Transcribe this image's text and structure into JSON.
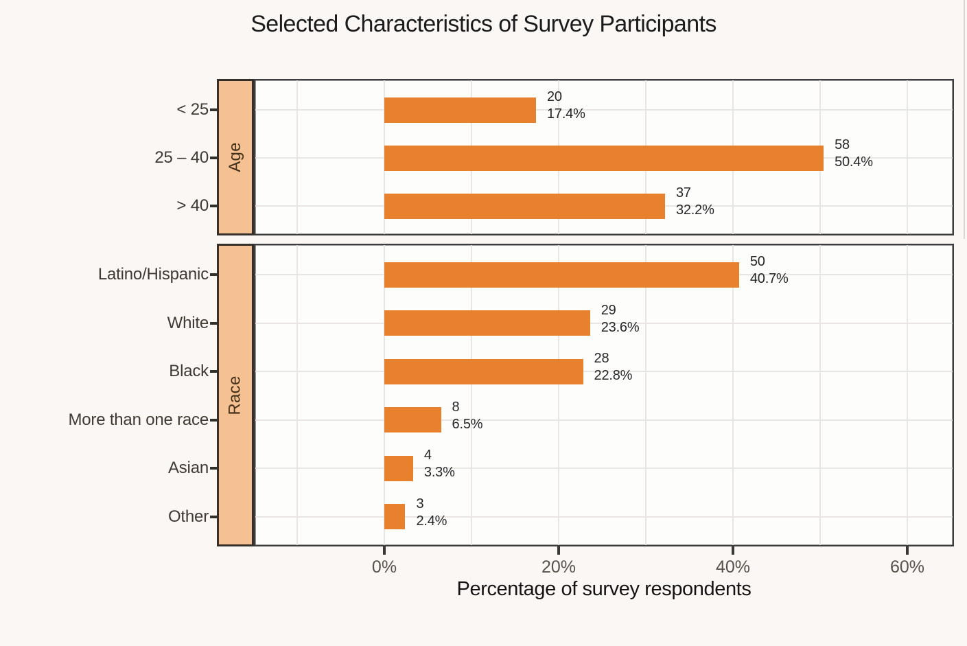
{
  "page": {
    "background": "#FAF7F4"
  },
  "chart_data": {
    "type": "bar",
    "orientation": "horizontal",
    "title": "Selected Characteristics of Survey Participants",
    "xlabel": "Percentage of survey respondents",
    "x_ticks": [
      "0%",
      "20%",
      "40%",
      "60%"
    ],
    "x_tick_values": [
      0,
      20,
      40,
      60
    ],
    "xlim": [
      -15,
      65
    ],
    "gridlines": {
      "vertical_percent_values": [
        -10,
        0,
        10,
        20,
        30,
        40,
        50,
        60
      ],
      "horizontal": "at each category center"
    },
    "legend": "none",
    "bar_color": "#E8812E",
    "strip_fill": "#F6C192",
    "facets": [
      {
        "label": "Age",
        "rows": [
          {
            "category": "< 25",
            "count": "20",
            "pct": 17.4,
            "pct_label": "17.4%"
          },
          {
            "category": "25 – 40",
            "count": "58",
            "pct": 50.4,
            "pct_label": "50.4%"
          },
          {
            "category": "> 40",
            "count": "37",
            "pct": 32.2,
            "pct_label": "32.2%"
          }
        ]
      },
      {
        "label": "Race",
        "rows": [
          {
            "category": "Latino/Hispanic",
            "count": "50",
            "pct": 40.7,
            "pct_label": "40.7%"
          },
          {
            "category": "White",
            "count": "29",
            "pct": 23.6,
            "pct_label": "23.6%"
          },
          {
            "category": "Black",
            "count": "28",
            "pct": 22.8,
            "pct_label": "22.8%"
          },
          {
            "category": "More than one race",
            "count": "8",
            "pct": 6.5,
            "pct_label": "6.5%"
          },
          {
            "category": "Asian",
            "count": "4",
            "pct": 3.3,
            "pct_label": "3.3%"
          },
          {
            "category": "Other",
            "count": "3",
            "pct": 2.4,
            "pct_label": "2.4%"
          }
        ]
      }
    ]
  }
}
